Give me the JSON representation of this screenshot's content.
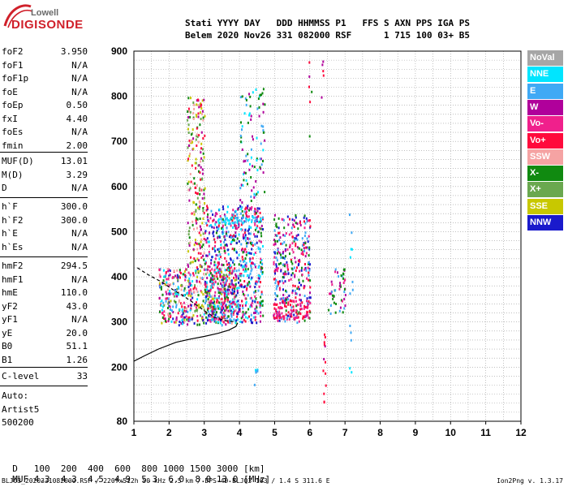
{
  "logo": {
    "top": "Lowell",
    "bottom": "DIGISONDE"
  },
  "header": {
    "line1": "Stati YYYY DAY   DDD HHMMSS P1   FFS S AXN PPS IGA PS",
    "line2": "Belem 2020 Nov26 331 082000 RSF      1 715 100 03+ B5"
  },
  "params_group1": [
    {
      "label": "foF2",
      "value": "3.950"
    },
    {
      "label": "foF1",
      "value": "N/A"
    },
    {
      "label": "foF1p",
      "value": "N/A"
    },
    {
      "label": "foE",
      "value": "N/A"
    },
    {
      "label": "foEp",
      "value": "0.50"
    },
    {
      "label": "fxI",
      "value": "4.40"
    },
    {
      "label": "foEs",
      "value": "N/A"
    },
    {
      "label": "fmin",
      "value": "2.00"
    }
  ],
  "params_group2": [
    {
      "label": "MUF(D)",
      "value": "13.01"
    },
    {
      "label": "M(D)",
      "value": "3.29"
    },
    {
      "label": "D",
      "value": "N/A"
    }
  ],
  "params_group3": [
    {
      "label": "h`F",
      "value": "300.0"
    },
    {
      "label": "h`F2",
      "value": "300.0"
    },
    {
      "label": "h`E",
      "value": "N/A"
    },
    {
      "label": "h`Es",
      "value": "N/A"
    }
  ],
  "params_group4": [
    {
      "label": "hmF2",
      "value": "294.5"
    },
    {
      "label": "hmF1",
      "value": "N/A"
    },
    {
      "label": "hmE",
      "value": "110.0"
    },
    {
      "label": "yF2",
      "value": "43.0"
    },
    {
      "label": "yF1",
      "value": "N/A"
    },
    {
      "label": "yE",
      "value": "20.0"
    },
    {
      "label": "B0",
      "value": "51.1"
    },
    {
      "label": "B1",
      "value": "1.26"
    }
  ],
  "params_group5": [
    {
      "label": "C-level",
      "value": "33"
    }
  ],
  "auto": {
    "line1": "Auto:",
    "line2": "Artist5",
    "line3": "500200"
  },
  "legend": [
    {
      "label": "NoVal",
      "color": "#a6a6a6"
    },
    {
      "label": "NNE",
      "color": "#00e5ff"
    },
    {
      "label": "E",
      "color": "#3fa9f5"
    },
    {
      "label": "W",
      "color": "#b0009b"
    },
    {
      "label": "Vo-",
      "color": "#f0208c"
    },
    {
      "label": "Vo+",
      "color": "#ff0a3c"
    },
    {
      "label": "SSW",
      "color": "#f5a3a3"
    },
    {
      "label": "X-",
      "color": "#108a10"
    },
    {
      "label": "X+",
      "color": "#6aa84f"
    },
    {
      "label": "SSE",
      "color": "#c8c800"
    },
    {
      "label": "NNW",
      "color": "#1a1acc"
    }
  ],
  "muf_table": {
    "d_label": "D",
    "d_values": "100  200  400  600  800 1000 1500 3000 [km]",
    "muf_label": "MUF",
    "muf_values": "4.3  4.3  4.5  4.9  5.3  6.0  8.0 13.0 [MHz]"
  },
  "footer": {
    "left": "BLJ03_2020331082000.RSF / 220fx512h 50 kHz 2.5 km / DPS-4D BLJ03 103 / 1.4 S 311.6 E",
    "right": "Ion2Png v. 1.3.17"
  },
  "chart_data": {
    "type": "scatter",
    "xlim": [
      1,
      12
    ],
    "ylim": [
      80,
      900
    ],
    "xticks": [
      1,
      2,
      3,
      4,
      5,
      6,
      7,
      8,
      9,
      10,
      11,
      12
    ],
    "yticks": [
      80,
      200,
      300,
      400,
      500,
      600,
      700,
      800,
      900
    ],
    "grid": "dotted",
    "series": [
      {
        "kind": "profile",
        "color": "#000000",
        "style": "solid",
        "points": [
          [
            1.0,
            213
          ],
          [
            1.3,
            225
          ],
          [
            1.7,
            240
          ],
          [
            2.2,
            255
          ],
          [
            2.6,
            262
          ],
          [
            3.0,
            268
          ],
          [
            3.4,
            275
          ],
          [
            3.7,
            282
          ],
          [
            3.9,
            290
          ],
          [
            3.95,
            298
          ]
        ]
      },
      {
        "kind": "profile",
        "color": "#000000",
        "style": "dashed",
        "points": [
          [
            1.1,
            420
          ],
          [
            1.4,
            405
          ],
          [
            1.8,
            388
          ],
          [
            2.1,
            372
          ],
          [
            2.4,
            358
          ],
          [
            2.7,
            342
          ],
          [
            3.0,
            325
          ],
          [
            3.3,
            310
          ],
          [
            3.6,
            303
          ],
          [
            3.9,
            300
          ]
        ]
      }
    ],
    "echo_clusters": [
      {
        "x_range": [
          1.7,
          3.95
        ],
        "h_range": [
          295,
          420
        ],
        "density": 1.0,
        "colors": [
          "#ff0a3c",
          "#f0208c",
          "#b0009b",
          "#108a10",
          "#3fa9f5",
          "#c8c800",
          "#6aa84f",
          "#1a1acc",
          "#00e5ff",
          "#f5a3a3"
        ]
      },
      {
        "x_range": [
          2.5,
          3.0
        ],
        "h_range": [
          420,
          800
        ],
        "density": 0.55,
        "colors": [
          "#c8c800",
          "#108a10",
          "#6aa84f",
          "#ff0a3c",
          "#b0009b",
          "#f5a3a3"
        ]
      },
      {
        "x_range": [
          3.0,
          4.65
        ],
        "h_range": [
          300,
          560
        ],
        "density": 0.8,
        "colors": [
          "#3fa9f5",
          "#1a1acc",
          "#b0009b",
          "#ff0a3c",
          "#f0208c",
          "#108a10",
          "#00e5ff"
        ]
      },
      {
        "x_range": [
          3.35,
          4.65
        ],
        "h_range": [
          520,
          535
        ],
        "density": 1.0,
        "colors": [
          "#3fa9f5",
          "#00e5ff"
        ]
      },
      {
        "x_range": [
          4.0,
          4.7
        ],
        "h_range": [
          560,
          820
        ],
        "density": 0.25,
        "colors": [
          "#3fa9f5",
          "#00e5ff",
          "#b0009b",
          "#108a10"
        ]
      },
      {
        "x_range": [
          4.95,
          6.0
        ],
        "h_range": [
          300,
          540
        ],
        "density": 0.65,
        "colors": [
          "#3fa9f5",
          "#ff0a3c",
          "#f0208c",
          "#b0009b",
          "#108a10",
          "#1a1acc"
        ]
      },
      {
        "x_range": [
          4.95,
          6.0
        ],
        "h_range": [
          310,
          350
        ],
        "density": 1.0,
        "colors": [
          "#ff0a3c",
          "#f0208c"
        ]
      },
      {
        "x_range": [
          6.5,
          7.0
        ],
        "h_range": [
          320,
          420
        ],
        "density": 0.5,
        "colors": [
          "#108a10",
          "#f0208c",
          "#3fa9f5",
          "#b0009b"
        ]
      },
      {
        "x_range": [
          6.35,
          6.45
        ],
        "h_range": [
          90,
          280
        ],
        "density": 0.35,
        "colors": [
          "#b0009b",
          "#ff0a3c"
        ]
      },
      {
        "x_range": [
          4.4,
          4.5
        ],
        "h_range": [
          160,
          230
        ],
        "density": 0.4,
        "colors": [
          "#3fa9f5",
          "#00e5ff"
        ]
      },
      {
        "x_range": [
          7.1,
          7.2
        ],
        "h_range": [
          170,
          600
        ],
        "density": 0.15,
        "colors": [
          "#3fa9f5",
          "#00e5ff"
        ]
      },
      {
        "x_range": [
          5.95,
          6.05
        ],
        "h_range": [
          640,
          900
        ],
        "density": 0.12,
        "colors": [
          "#ff0a3c",
          "#b0009b",
          "#108a10"
        ]
      },
      {
        "x_range": [
          6.3,
          6.4
        ],
        "h_range": [
          790,
          880
        ],
        "density": 0.3,
        "colors": [
          "#b0009b",
          "#ff0a3c"
        ]
      }
    ]
  }
}
